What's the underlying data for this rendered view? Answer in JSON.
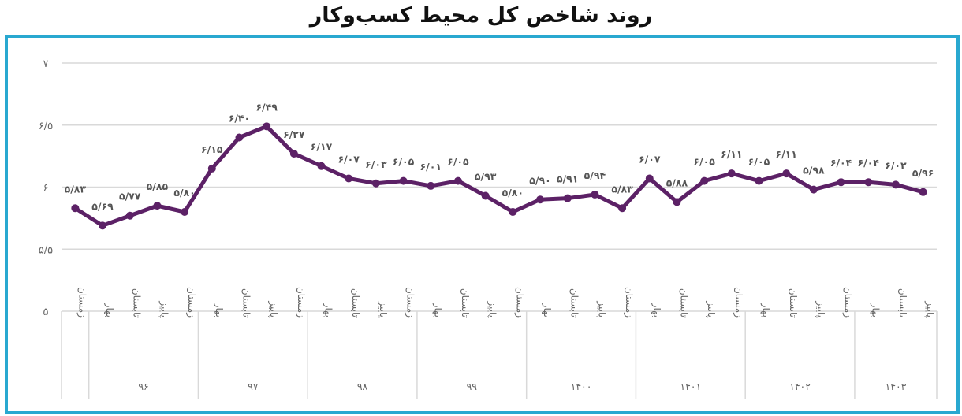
{
  "title": "روند شاخص کل محیط کسب‌وکار",
  "colors": {
    "frame": "#29a8d0",
    "line": "#5c2166",
    "grid": "#d9d9d9",
    "axis_text": "#666666"
  },
  "chart_data": {
    "type": "line",
    "title": "روند شاخص کل محیط کسب‌وکار",
    "xlabel": "",
    "ylabel": "",
    "ylim": [
      5,
      7
    ],
    "yticks": [
      5,
      5.5,
      6,
      6.5,
      7
    ],
    "ytick_labels": [
      "۵",
      "۵/۵",
      "۶",
      "۶/۵",
      "۷"
    ],
    "grid": true,
    "legend": null,
    "year_groups": [
      {
        "label": "",
        "count": 1
      },
      {
        "label": "۹۶",
        "count": 4
      },
      {
        "label": "۹۷",
        "count": 4
      },
      {
        "label": "۹۸",
        "count": 4
      },
      {
        "label": "۹۹",
        "count": 4
      },
      {
        "label": "۱۴۰۰",
        "count": 4
      },
      {
        "label": "۱۴۰۱",
        "count": 4
      },
      {
        "label": "۱۴۰۲",
        "count": 4
      },
      {
        "label": "۱۴۰۳",
        "count": 3
      }
    ],
    "categories": [
      "زمستان",
      "بهار",
      "تابستان",
      "پاییز",
      "زمستان",
      "بهار",
      "تابستان",
      "پاییز",
      "زمستان",
      "بهار",
      "تابستان",
      "پاییز",
      "زمستان",
      "بهار",
      "تابستان",
      "پاییز",
      "زمستان",
      "بهار",
      "تابستان",
      "پاییز",
      "زمستان",
      "بهار",
      "تابستان",
      "پاییز",
      "زمستان",
      "بهار",
      "تابستان",
      "پاییز",
      "زمستان",
      "بهار",
      "تابستان",
      "پاییز"
    ],
    "series": [
      {
        "name": "شاخص کل محیط کسب‌وکار",
        "values": [
          5.83,
          5.69,
          5.77,
          5.85,
          5.8,
          6.15,
          6.4,
          6.49,
          6.27,
          6.17,
          6.07,
          6.03,
          6.05,
          6.01,
          6.05,
          5.93,
          5.8,
          5.9,
          5.91,
          5.94,
          5.83,
          6.07,
          5.88,
          6.05,
          6.11,
          6.05,
          6.11,
          5.98,
          6.04,
          6.04,
          6.02,
          5.96
        ],
        "labels": [
          "۵/۸۳",
          "۵/۶۹",
          "۵/۷۷",
          "۵/۸۵",
          "۵/۸۰",
          "۶/۱۵",
          "۶/۴۰",
          "۶/۴۹",
          "۶/۲۷",
          "۶/۱۷",
          "۶/۰۷",
          "۶/۰۳",
          "۶/۰۵",
          "۶/۰۱",
          "۶/۰۵",
          "۵/۹۳",
          "۵/۸۰",
          "۵/۹۰",
          "۵/۹۱",
          "۵/۹۴",
          "۵/۸۳",
          "۶/۰۷",
          "۵/۸۸",
          "۶/۰۵",
          "۶/۱۱",
          "۶/۰۵",
          "۶/۱۱",
          "۵/۹۸",
          "۶/۰۴",
          "۶/۰۴",
          "۶/۰۲",
          "۵/۹۶"
        ]
      }
    ]
  }
}
